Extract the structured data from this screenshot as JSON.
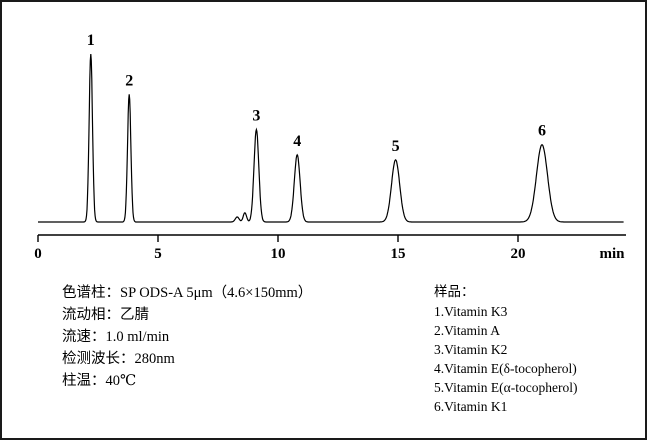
{
  "chart_data": {
    "type": "line",
    "title": "",
    "xlabel": "min",
    "x_ticks": [
      0,
      5,
      10,
      15,
      20
    ],
    "x_range": [
      0,
      24.4
    ],
    "ylim": [
      0,
      110
    ],
    "grid": false,
    "legend": "none",
    "peaks": [
      {
        "label": "1",
        "center": 2.2,
        "height": 100,
        "sigma": 0.07
      },
      {
        "label": "2",
        "center": 3.8,
        "height": 76,
        "sigma": 0.07
      },
      {
        "label": "3",
        "center": 9.1,
        "height": 55,
        "sigma": 0.1
      },
      {
        "label": "4",
        "center": 10.8,
        "height": 40,
        "sigma": 0.12
      },
      {
        "label": "5",
        "center": 14.9,
        "height": 37,
        "sigma": 0.17
      },
      {
        "label": "6",
        "center": 21.0,
        "height": 46,
        "sigma": 0.23
      }
    ],
    "minor_disturbances": [
      {
        "center": 8.3,
        "height": 3.0,
        "sigma": 0.08
      },
      {
        "center": 8.62,
        "height": 5.5,
        "sigma": 0.07
      }
    ],
    "line_color": "#000000"
  },
  "info": {
    "conditions": [
      "色谱柱：SP ODS-A 5μm（4.6×150mm）",
      "流动相：乙腈",
      "流速：1.0 ml/min",
      "检测波长：280nm",
      "柱温：40℃"
    ]
  },
  "samples": {
    "title": "样品：",
    "items": [
      "1.Vitamin K3",
      "2.Vitamin A",
      "3.Vitamin K2",
      "4.Vitamin E(δ-tocopherol)",
      "5.Vitamin E(α-tocopherol)",
      "6.Vitamin K1"
    ]
  }
}
